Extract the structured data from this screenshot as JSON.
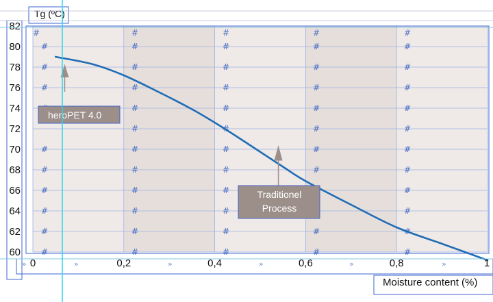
{
  "chart_data": {
    "type": "line",
    "title": "Tg (ºC)",
    "xlabel": "Moisture content (%)",
    "ylabel": "Tg (ºC)",
    "x_ticks": [
      "0",
      "0,2",
      "0,4",
      "0,6",
      "0,8",
      "1"
    ],
    "y_ticks": [
      "60",
      "62",
      "64",
      "66",
      "68",
      "70",
      "72",
      "74",
      "76",
      "78",
      "80",
      "82"
    ],
    "xlim": [
      0,
      1
    ],
    "ylim": [
      60,
      82
    ],
    "grid": true,
    "series": [
      {
        "color": "#1f6db5",
        "x": [
          0.05,
          0.13,
          0.2,
          0.28,
          0.35,
          0.4,
          0.45,
          0.55,
          0.6,
          0.7,
          0.8,
          0.9,
          1.0
        ],
        "y": [
          79.0,
          78.3,
          77.2,
          75.5,
          73.9,
          72.6,
          71.2,
          68.3,
          66.9,
          64.6,
          62.4,
          60.8,
          59.2
        ]
      }
    ],
    "annotations": [
      {
        "text": "heroPET 4.0",
        "x": 0.07,
        "y": 77.0
      },
      {
        "text": "Traditionel\nProcess",
        "x": 0.54,
        "y": 69.6
      }
    ]
  },
  "colors": {
    "plot_bg_light": "#efe9e7",
    "plot_bg_dark": "#e6dedb",
    "grid": "#9db3e3",
    "line": "#1f6db5",
    "annotation_box": "#9c8f8a",
    "guide": "#2fd4e8",
    "frame": "#3e66d0"
  }
}
